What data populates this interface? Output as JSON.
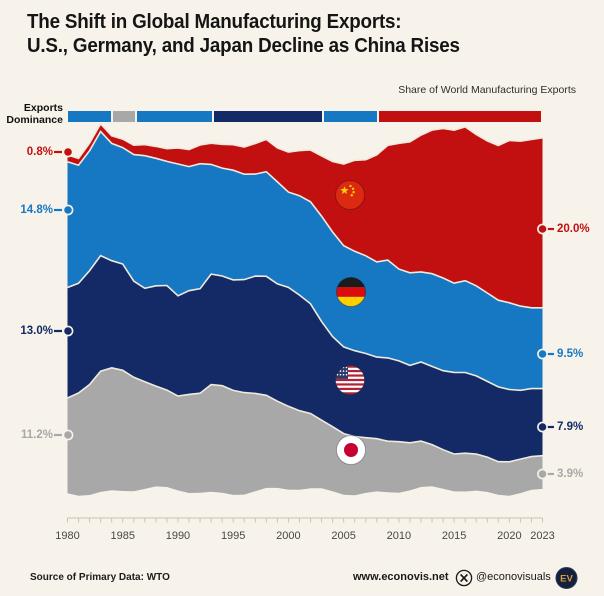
{
  "header": {
    "title_line1": "The Shift in Global Manufacturing Exports:",
    "title_line2": "U.S., Germany, and Japan Decline as China Rises",
    "subtitle": "Share of World Manufacturing Exports"
  },
  "legend": {
    "label_line1": "Exports",
    "label_line2": "Dominance"
  },
  "chart_data": {
    "type": "area",
    "stacked": true,
    "unit": "percent share of world manufacturing exports",
    "x": [
      1980,
      1981,
      1982,
      1983,
      1984,
      1985,
      1986,
      1987,
      1988,
      1989,
      1990,
      1991,
      1992,
      1993,
      1994,
      1995,
      1996,
      1997,
      1998,
      1999,
      2000,
      2001,
      2002,
      2003,
      2004,
      2005,
      2006,
      2007,
      2008,
      2009,
      2010,
      2011,
      2012,
      2013,
      2014,
      2015,
      2016,
      2017,
      2018,
      2019,
      2020,
      2021,
      2022,
      2023
    ],
    "x_tick_labels": [
      "1980",
      "1985",
      "1990",
      "1995",
      "2000",
      "2005",
      "2010",
      "2015",
      "2020",
      "2023"
    ],
    "series": [
      {
        "name": "China",
        "flag": "china",
        "color": "#c21011",
        "start_label": "0.8%",
        "end_label": "20.0%",
        "values": [
          0.8,
          0.8,
          0.9,
          0.9,
          0.9,
          1.0,
          1.1,
          1.3,
          1.4,
          1.5,
          1.9,
          2.0,
          2.2,
          2.5,
          2.8,
          3.0,
          3.2,
          3.6,
          3.8,
          4.0,
          4.7,
          5.3,
          6.1,
          7.1,
          8.3,
          9.6,
          10.7,
          11.3,
          12.6,
          13.5,
          14.8,
          15.4,
          16.1,
          16.9,
          17.6,
          18.0,
          18.1,
          17.8,
          17.9,
          18.2,
          19.1,
          19.4,
          19.8,
          20.0
        ]
      },
      {
        "name": "Germany",
        "flag": "germany",
        "color": "#1677c2",
        "start_label": "14.8%",
        "end_label": "9.5%",
        "values": [
          14.8,
          13.9,
          14.1,
          14.6,
          13.8,
          13.7,
          14.9,
          15.6,
          15.0,
          14.6,
          15.5,
          14.6,
          14.7,
          12.9,
          12.7,
          12.9,
          12.4,
          12.0,
          12.3,
          12.0,
          11.2,
          11.7,
          12.0,
          12.4,
          12.3,
          11.9,
          11.7,
          11.5,
          11.2,
          11.5,
          10.8,
          10.9,
          10.6,
          10.9,
          10.9,
          10.5,
          10.8,
          10.6,
          10.4,
          10.2,
          10.2,
          9.9,
          9.5,
          9.5
        ]
      },
      {
        "name": "United States",
        "flag": "usa",
        "color": "#132a66",
        "start_label": "13.0%",
        "end_label": "7.9%",
        "values": [
          13.0,
          12.9,
          13.4,
          13.6,
          12.6,
          12.5,
          11.3,
          11.0,
          11.8,
          12.3,
          11.8,
          12.2,
          12.3,
          13.0,
          12.9,
          13.0,
          13.3,
          13.8,
          14.0,
          13.8,
          14.0,
          13.6,
          12.9,
          11.6,
          10.6,
          10.2,
          10.1,
          9.9,
          9.6,
          9.8,
          9.5,
          9.1,
          9.3,
          9.2,
          9.3,
          9.6,
          9.5,
          9.2,
          8.9,
          8.8,
          8.5,
          8.1,
          8.0,
          7.9
        ]
      },
      {
        "name": "Japan",
        "flag": "japan",
        "color": "#a8a8a8",
        "start_label": "11.2%",
        "end_label": "3.9%",
        "values": [
          11.2,
          12.1,
          13.0,
          14.2,
          14.4,
          14.2,
          13.4,
          12.6,
          11.8,
          11.4,
          11.1,
          11.6,
          11.7,
          12.6,
          12.6,
          12.3,
          12.0,
          11.5,
          10.9,
          10.2,
          9.8,
          9.3,
          8.8,
          8.0,
          7.6,
          7.2,
          6.9,
          6.5,
          6.2,
          6.0,
          6.0,
          5.6,
          5.4,
          4.9,
          4.6,
          4.4,
          4.5,
          4.3,
          4.1,
          3.9,
          4.0,
          4.0,
          3.9,
          3.9
        ]
      }
    ],
    "dominance_timeline": [
      {
        "country": "Germany",
        "from": 1980,
        "to": 1984
      },
      {
        "country": "Japan",
        "from": 1984,
        "to": 1986
      },
      {
        "country": "Germany",
        "from": 1986,
        "to": 1993
      },
      {
        "country": "United States",
        "from": 1993,
        "to": 2003
      },
      {
        "country": "Germany",
        "from": 2003,
        "to": 2008
      },
      {
        "country": "China",
        "from": 2008,
        "to": 2023
      }
    ],
    "legend_position": "top",
    "grid": false
  },
  "footer": {
    "source": "Source of Primary Data: WTO",
    "website": "www.econovis.net",
    "social_handle": "@econovisuals",
    "logo_text": "EV"
  },
  "colors": {
    "background": "#f7f3ea",
    "china_red": "#c21011",
    "germany_blue": "#1677c2",
    "usa_navy": "#132a66",
    "japan_gray": "#a8a8a8",
    "axis": "#c9c3b2",
    "logo_circle": "#15203d",
    "logo_gold": "#d89b3a"
  }
}
